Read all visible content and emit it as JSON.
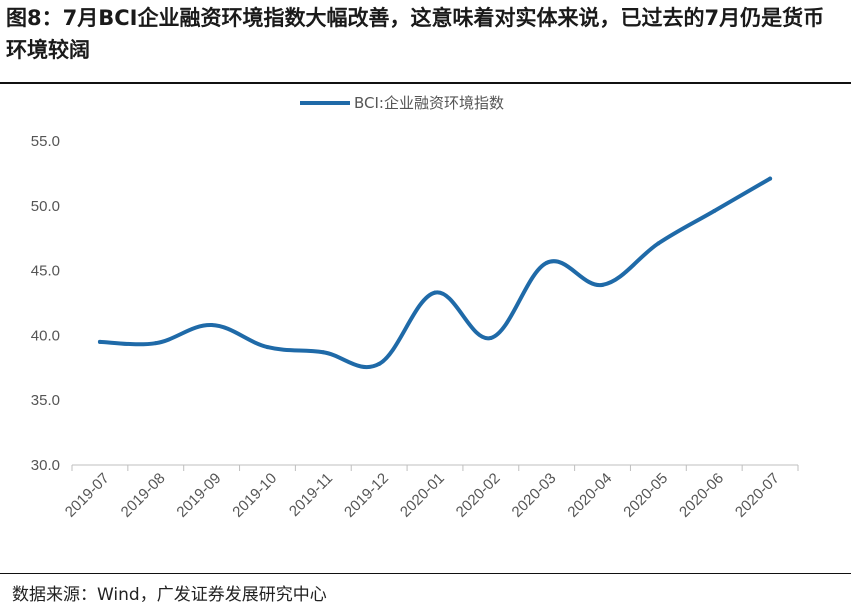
{
  "title": "图8：7月BCI企业融资环境指数大幅改善，这意味着对实体来说，已过去的7月仍是货币环境较阔",
  "source": "数据来源：Wind，广发证券发展研究中心",
  "colors": {
    "line": "#1f6aa8",
    "axis": "#bfbfbf",
    "tick_text": "#555555"
  },
  "chart_data": {
    "type": "line",
    "title": "图8：7月BCI企业融资环境指数大幅改善，这意味着对实体来说，已过去的7月仍是货币环境较阔",
    "xlabel": "",
    "ylabel": "",
    "ylim": [
      30.0,
      55.0
    ],
    "yticks": [
      "30.0",
      "35.0",
      "40.0",
      "45.0",
      "50.0",
      "55.0"
    ],
    "grid": false,
    "legend_position": "top-center",
    "categories": [
      "2019-07",
      "2019-08",
      "2019-09",
      "2019-10",
      "2019-11",
      "2019-12",
      "2020-01",
      "2020-02",
      "2020-03",
      "2020-04",
      "2020-05",
      "2020-06",
      "2020-07"
    ],
    "series": [
      {
        "name": "BCI:企业融资环境指数",
        "values": [
          39.5,
          39.4,
          40.8,
          39.1,
          38.7,
          37.8,
          43.3,
          39.8,
          45.6,
          43.9,
          47.1,
          49.6,
          52.1
        ]
      }
    ]
  }
}
